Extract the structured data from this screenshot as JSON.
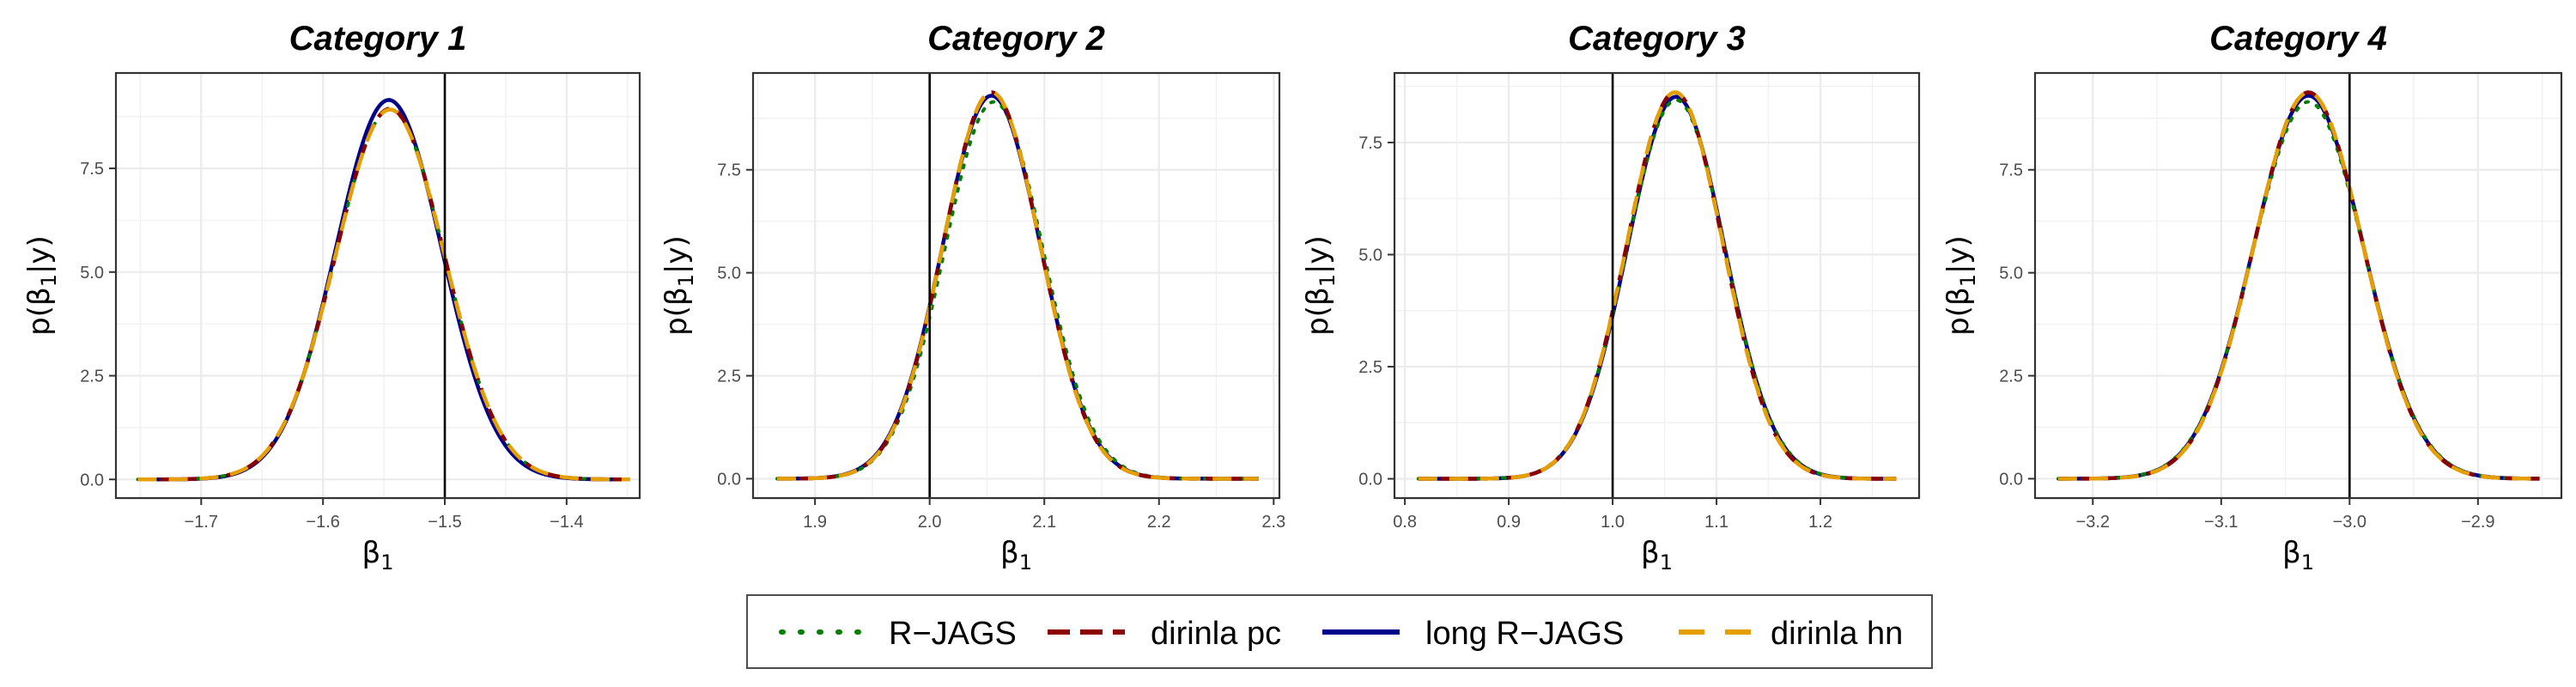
{
  "chart_data": [
    {
      "type": "line",
      "title": "Category 1",
      "xlabel_base": "β",
      "xlabel_sub": "1",
      "ylabel_pre": "p(β",
      "ylabel_sub": "1",
      "ylabel_post": "|y)",
      "xlim": [
        -1.77,
        -1.34
      ],
      "ylim": [
        -0.45,
        9.8
      ],
      "xticks": [
        -1.7,
        -1.6,
        -1.5,
        -1.4
      ],
      "xtick_labels": [
        "−1.7",
        "−1.6",
        "−1.5",
        "−1.4"
      ],
      "yticks": [
        0,
        2.5,
        5,
        7.5
      ],
      "ytick_labels": [
        "0.0",
        "2.5",
        "5.0",
        "7.5"
      ],
      "true_value": -1.5,
      "x_range": [
        -1.752,
        -1.348
      ],
      "series": [
        {
          "name": "R−JAGS",
          "mean": -1.545,
          "sd": 0.0447,
          "peak": 8.92
        },
        {
          "name": "dirinla pc",
          "mean": -1.545,
          "sd": 0.0446,
          "peak": 8.94
        },
        {
          "name": "long R−JAGS",
          "mean": -1.546,
          "sd": 0.0436,
          "peak": 9.15
        },
        {
          "name": "dirinla hn",
          "mean": -1.545,
          "sd": 0.0447,
          "peak": 8.92
        }
      ]
    },
    {
      "type": "line",
      "title": "Category 2",
      "xlabel_base": "β",
      "xlabel_sub": "1",
      "ylabel_pre": "p(β",
      "ylabel_sub": "1",
      "ylabel_post": "|y)",
      "xlim": [
        1.846,
        2.305
      ],
      "ylim": [
        -0.47,
        9.85
      ],
      "xticks": [
        1.9,
        2.0,
        2.1,
        2.2,
        2.3
      ],
      "xtick_labels": [
        "1.9",
        "2.0",
        "2.1",
        "2.2",
        "2.3"
      ],
      "yticks": [
        0,
        2.5,
        5,
        7.5
      ],
      "ytick_labels": [
        "0.0",
        "2.5",
        "5.0",
        "7.5"
      ],
      "true_value": 2.0,
      "x_range": [
        1.867,
        2.287
      ],
      "series": [
        {
          "name": "R−JAGS",
          "mean": 2.056,
          "sd": 0.043,
          "peak": 9.15
        },
        {
          "name": "dirinla pc",
          "mean": 2.054,
          "sd": 0.0424,
          "peak": 9.38
        },
        {
          "name": "long R−JAGS",
          "mean": 2.054,
          "sd": 0.0428,
          "peak": 9.3
        },
        {
          "name": "dirinla hn",
          "mean": 2.054,
          "sd": 0.0424,
          "peak": 9.38
        }
      ]
    },
    {
      "type": "line",
      "title": "Category 3",
      "xlabel_base": "β",
      "xlabel_sub": "1",
      "ylabel_pre": "p(β",
      "ylabel_sub": "1",
      "ylabel_post": "|y)",
      "xlim": [
        0.79,
        1.295
      ],
      "ylim": [
        -0.43,
        9.05
      ],
      "xticks": [
        0.8,
        0.9,
        1.0,
        1.1,
        1.2
      ],
      "xtick_labels": [
        "0.8",
        "0.9",
        "1.0",
        "1.1",
        "1.2"
      ],
      "yticks": [
        0,
        2.5,
        5,
        7.5
      ],
      "ytick_labels": [
        "0.0",
        "2.5",
        "5.0",
        "7.5"
      ],
      "true_value": 1.0,
      "x_range": [
        0.813,
        1.273
      ],
      "series": [
        {
          "name": "R−JAGS",
          "mean": 1.061,
          "sd": 0.0472,
          "peak": 8.45
        },
        {
          "name": "dirinla pc",
          "mean": 1.06,
          "sd": 0.0464,
          "peak": 8.62
        },
        {
          "name": "long R−JAGS",
          "mean": 1.061,
          "sd": 0.0468,
          "peak": 8.52
        },
        {
          "name": "dirinla hn",
          "mean": 1.06,
          "sd": 0.0464,
          "peak": 8.62
        }
      ]
    },
    {
      "type": "line",
      "title": "Category 4",
      "xlabel_base": "β",
      "xlabel_sub": "1",
      "ylabel_pre": "p(β",
      "ylabel_sub": "1",
      "ylabel_post": "|y)",
      "xlim": [
        -3.245,
        -2.835
      ],
      "ylim": [
        -0.47,
        9.85
      ],
      "xticks": [
        -3.2,
        -3.1,
        -3.0,
        -2.9
      ],
      "xtick_labels": [
        "−3.2",
        "−3.1",
        "−3.0",
        "−2.9"
      ],
      "yticks": [
        0,
        2.5,
        5,
        7.5
      ],
      "ytick_labels": [
        "0.0",
        "2.5",
        "5.0",
        "7.5"
      ],
      "true_value": -3.0,
      "x_range": [
        -3.227,
        -2.852
      ],
      "series": [
        {
          "name": "R−JAGS",
          "mean": -3.032,
          "sd": 0.0432,
          "peak": 9.15
        },
        {
          "name": "dirinla pc",
          "mean": -3.032,
          "sd": 0.0424,
          "peak": 9.38
        },
        {
          "name": "long R−JAGS",
          "mean": -3.032,
          "sd": 0.0428,
          "peak": 9.3
        },
        {
          "name": "dirinla hn",
          "mean": -3.032,
          "sd": 0.0424,
          "peak": 9.38
        }
      ]
    }
  ],
  "legend": {
    "placement": "bottom",
    "items": [
      {
        "label": "R−JAGS",
        "color": "#008000",
        "style": "dotted"
      },
      {
        "label": "dirinla pc",
        "color": "#8b0000",
        "style": "dashed"
      },
      {
        "label": "long R−JAGS",
        "color": "#00008b",
        "style": "solid"
      },
      {
        "label": "dirinla hn",
        "color": "#e69f00",
        "style": "longdash"
      }
    ]
  },
  "colors": {
    "R−JAGS": "#008000",
    "dirinla pc": "#8b0000",
    "long R−JAGS": "#00008b",
    "dirinla hn": "#e69f00",
    "true_value_line": "#000000",
    "grid": "#ebebeb"
  },
  "grid": true
}
